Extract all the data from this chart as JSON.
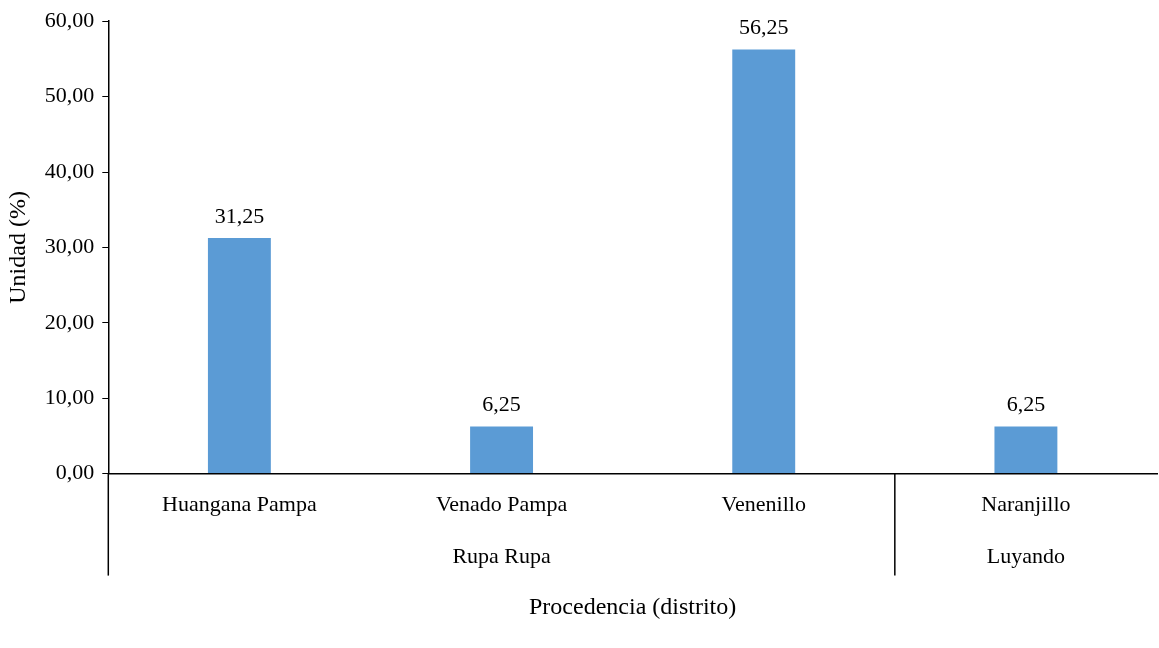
{
  "chart_data": {
    "type": "bar",
    "xlabel": "Procedencia (distrito)",
    "ylabel": "Unidad (%)",
    "categories": [
      "Huangana Pampa",
      "Venado Pampa",
      "Venenillo",
      "Naranjillo"
    ],
    "values": [
      31.25,
      6.25,
      56.25,
      6.25
    ],
    "color": "#5b9bd5",
    "value_labels": [
      "31,25",
      "6,25",
      "56,25",
      "6,25"
    ],
    "ylim": [
      0,
      60
    ],
    "yticks": [
      {
        "value": 0,
        "label": "0,00"
      },
      {
        "value": 10,
        "label": "10,00"
      },
      {
        "value": 20,
        "label": "20,00"
      },
      {
        "value": 30,
        "label": "30,00"
      },
      {
        "value": 40,
        "label": "40,00"
      },
      {
        "value": 50,
        "label": "50,00"
      },
      {
        "value": 60,
        "label": "60,00"
      }
    ],
    "annotations": [
      "Rupa Rupa",
      "Luyando"
    ],
    "grid": false,
    "legend": false
  }
}
